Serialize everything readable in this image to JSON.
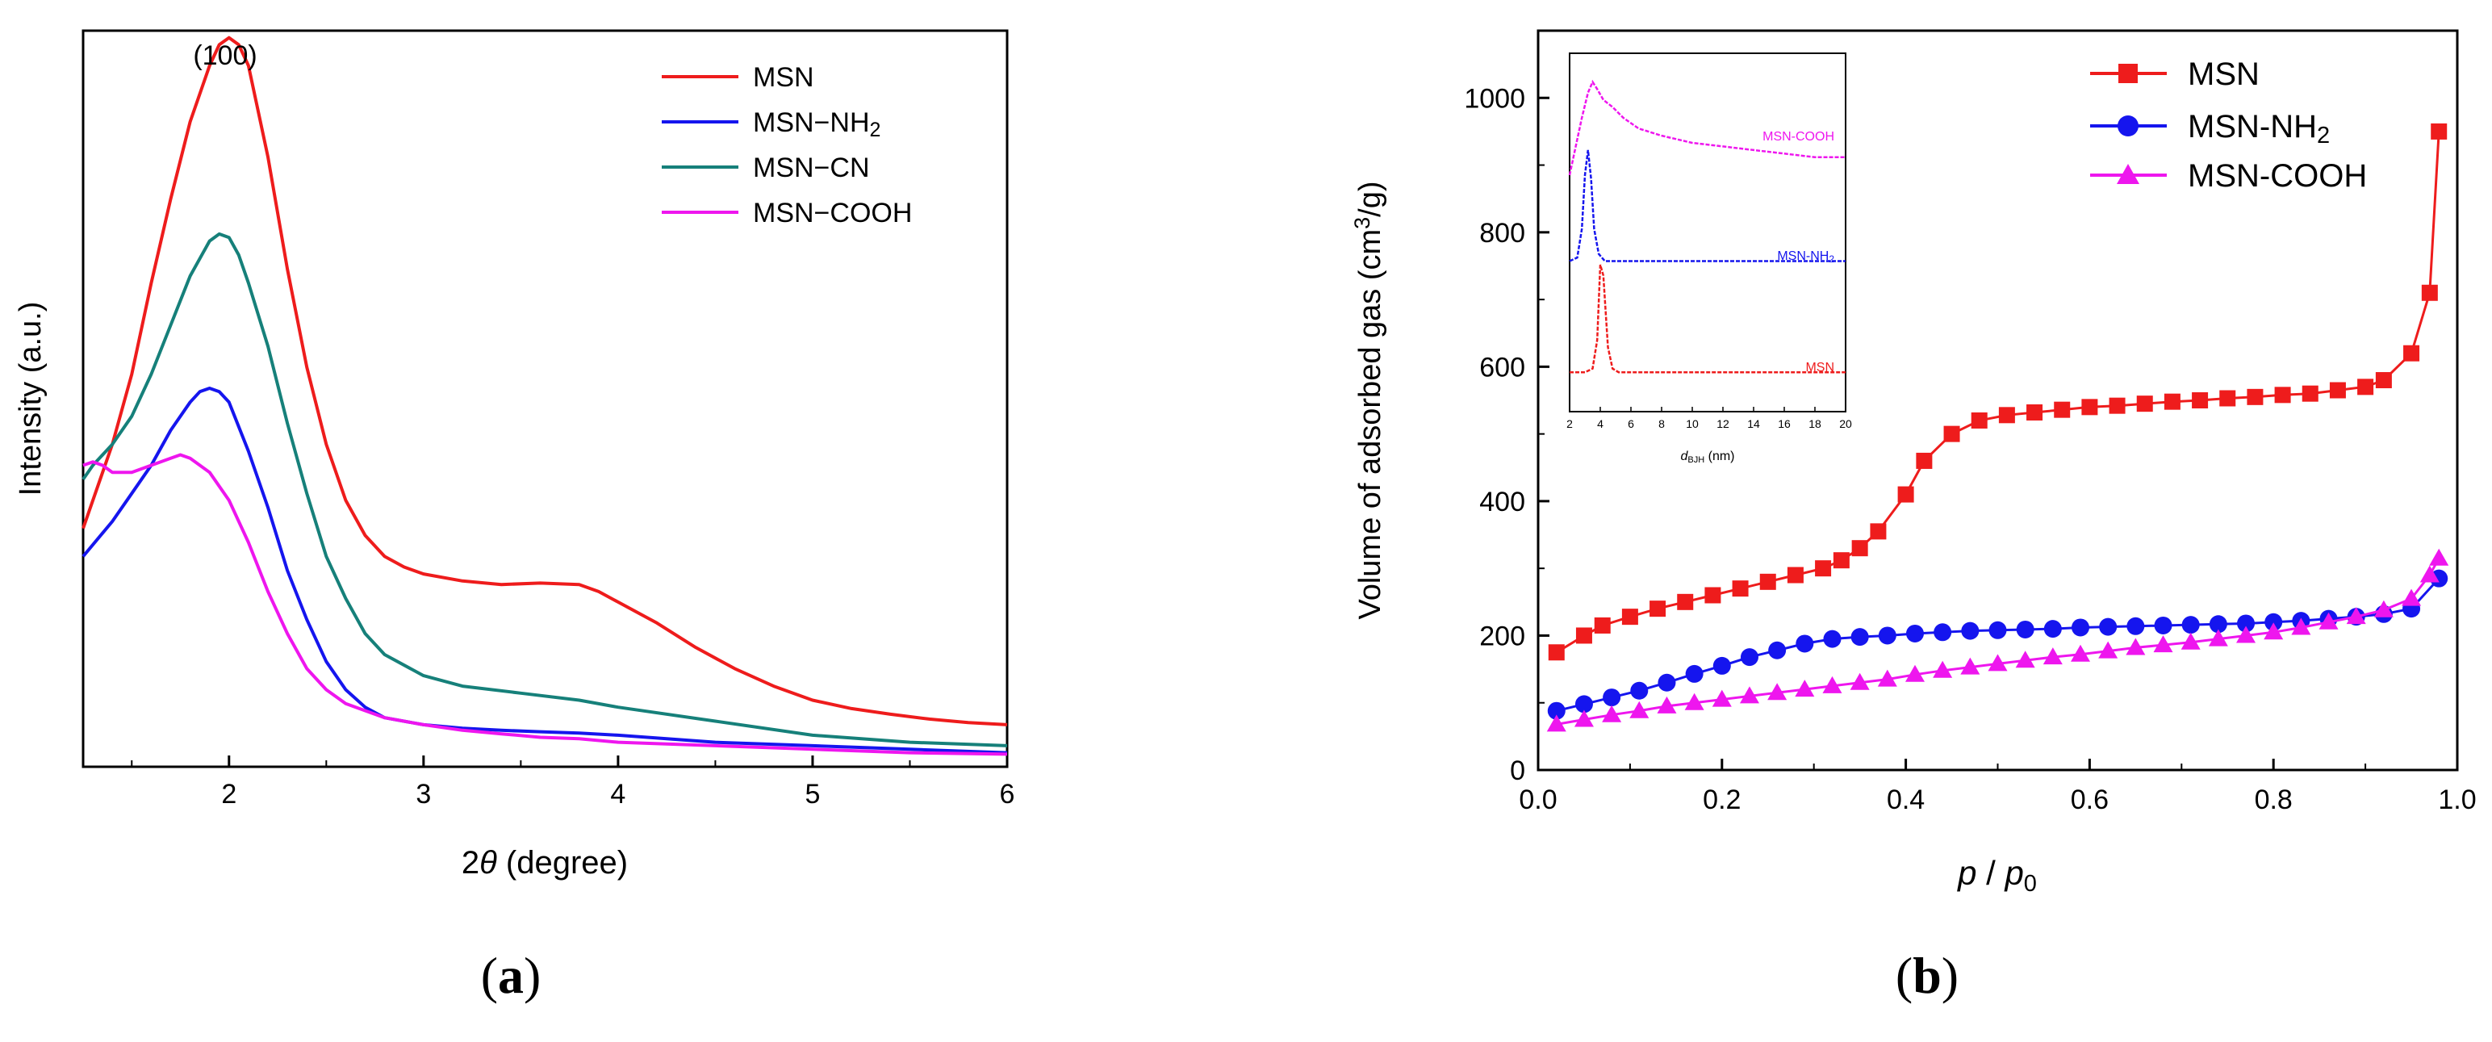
{
  "panels": {
    "a": {
      "label_open": "(",
      "label_letter": "a",
      "label_close": ")"
    },
    "b": {
      "label_open": "(",
      "label_letter": "b",
      "label_close": ")"
    }
  },
  "chart_data": [
    {
      "type": "line",
      "panel": "a",
      "title": "",
      "xlabel_prefix": "2",
      "xlabel_symbol": "θ",
      "xlabel_suffix": " (degree)",
      "ylabel": "Intensity (a.u.)",
      "annotation": "(100)",
      "xlim": [
        1.25,
        6
      ],
      "ylim": [
        0,
        1.05
      ],
      "xticks": [
        2,
        3,
        4,
        5,
        6
      ],
      "yticks": [],
      "legend_position": "top-right",
      "series": [
        {
          "name": "MSN",
          "legend_label": "MSN",
          "color": "#ee1c1c",
          "x": [
            1.25,
            1.4,
            1.5,
            1.6,
            1.7,
            1.8,
            1.9,
            1.95,
            2.0,
            2.05,
            2.1,
            2.2,
            2.3,
            2.4,
            2.5,
            2.6,
            2.7,
            2.8,
            2.9,
            3.0,
            3.2,
            3.4,
            3.6,
            3.8,
            3.9,
            4.0,
            4.2,
            4.4,
            4.6,
            4.8,
            5.0,
            5.2,
            5.4,
            5.6,
            5.8,
            6.0
          ],
          "y": [
            0.34,
            0.46,
            0.56,
            0.69,
            0.81,
            0.92,
            1.0,
            1.03,
            1.04,
            1.03,
            1.0,
            0.87,
            0.71,
            0.57,
            0.46,
            0.38,
            0.33,
            0.3,
            0.285,
            0.275,
            0.265,
            0.26,
            0.262,
            0.26,
            0.25,
            0.235,
            0.205,
            0.17,
            0.14,
            0.115,
            0.095,
            0.083,
            0.075,
            0.068,
            0.063,
            0.06
          ]
        },
        {
          "name": "MSN-NH2",
          "legend_label_base": "MSN−NH",
          "legend_label_sub": "2",
          "color": "#1515ee",
          "x": [
            1.25,
            1.4,
            1.5,
            1.6,
            1.7,
            1.8,
            1.85,
            1.9,
            1.95,
            2.0,
            2.1,
            2.2,
            2.3,
            2.4,
            2.5,
            2.6,
            2.7,
            2.8,
            3.0,
            3.2,
            3.4,
            3.6,
            3.8,
            4.0,
            4.5,
            5.0,
            5.5,
            6.0
          ],
          "y": [
            0.3,
            0.35,
            0.39,
            0.43,
            0.48,
            0.52,
            0.535,
            0.54,
            0.535,
            0.52,
            0.45,
            0.37,
            0.28,
            0.21,
            0.15,
            0.11,
            0.085,
            0.07,
            0.06,
            0.055,
            0.052,
            0.05,
            0.048,
            0.045,
            0.035,
            0.03,
            0.025,
            0.02
          ]
        },
        {
          "name": "MSN-CN",
          "legend_label": "MSN−CN",
          "color": "#16807a",
          "x": [
            1.25,
            1.3,
            1.4,
            1.5,
            1.6,
            1.7,
            1.8,
            1.9,
            1.95,
            2.0,
            2.05,
            2.1,
            2.2,
            2.3,
            2.4,
            2.5,
            2.6,
            2.7,
            2.8,
            3.0,
            3.2,
            3.5,
            3.8,
            4.0,
            4.5,
            5.0,
            5.5,
            6.0
          ],
          "y": [
            0.41,
            0.43,
            0.46,
            0.5,
            0.56,
            0.63,
            0.7,
            0.75,
            0.76,
            0.755,
            0.73,
            0.69,
            0.6,
            0.49,
            0.39,
            0.3,
            0.24,
            0.19,
            0.16,
            0.13,
            0.115,
            0.105,
            0.095,
            0.085,
            0.065,
            0.045,
            0.035,
            0.03
          ]
        },
        {
          "name": "MSN-COOH",
          "legend_label": "MSN−COOH",
          "color": "#ee16ee",
          "x": [
            1.25,
            1.3,
            1.35,
            1.4,
            1.5,
            1.6,
            1.7,
            1.75,
            1.8,
            1.9,
            2.0,
            2.1,
            2.2,
            2.3,
            2.4,
            2.5,
            2.6,
            2.7,
            2.8,
            3.0,
            3.2,
            3.4,
            3.6,
            3.8,
            4.0,
            4.5,
            5.0,
            5.5,
            6.0
          ],
          "y": [
            0.43,
            0.435,
            0.43,
            0.42,
            0.42,
            0.43,
            0.44,
            0.445,
            0.44,
            0.42,
            0.38,
            0.32,
            0.25,
            0.19,
            0.14,
            0.11,
            0.09,
            0.08,
            0.07,
            0.06,
            0.052,
            0.047,
            0.042,
            0.04,
            0.035,
            0.03,
            0.025,
            0.02,
            0.018
          ]
        }
      ]
    },
    {
      "type": "line",
      "panel": "b",
      "title": "",
      "xlabel_p": "p",
      "xlabel_slash": " / ",
      "xlabel_p0_base": "p",
      "xlabel_p0_sub": "0",
      "ylabel_prefix": "Volume of adsorbed gas (cm",
      "ylabel_sup": "3",
      "ylabel_suffix": "/g)",
      "xlim": [
        0,
        1.0
      ],
      "ylim": [
        0,
        1100
      ],
      "xticks": [
        0.0,
        0.2,
        0.4,
        0.6,
        0.8,
        1.0
      ],
      "xtick_labels": [
        "0.0",
        "0.2",
        "0.4",
        "0.6",
        "0.8",
        "1.0"
      ],
      "yticks": [
        0,
        200,
        400,
        600,
        800,
        1000
      ],
      "ytick_labels": [
        "0",
        "200",
        "400",
        "600",
        "800",
        "1000"
      ],
      "legend_position": "top-right",
      "series": [
        {
          "name": "MSN",
          "legend_label": "MSN",
          "marker": "square",
          "color": "#ee1c1c",
          "x": [
            0.02,
            0.05,
            0.07,
            0.1,
            0.13,
            0.16,
            0.19,
            0.22,
            0.25,
            0.28,
            0.31,
            0.33,
            0.35,
            0.37,
            0.4,
            0.42,
            0.45,
            0.48,
            0.51,
            0.54,
            0.57,
            0.6,
            0.63,
            0.66,
            0.69,
            0.72,
            0.75,
            0.78,
            0.81,
            0.84,
            0.87,
            0.9,
            0.92,
            0.95,
            0.97,
            0.98
          ],
          "y": [
            175,
            200,
            215,
            228,
            240,
            250,
            260,
            270,
            280,
            290,
            300,
            312,
            330,
            355,
            410,
            460,
            500,
            520,
            528,
            532,
            536,
            540,
            542,
            545,
            548,
            550,
            553,
            555,
            558,
            560,
            565,
            570,
            580,
            620,
            710,
            950
          ]
        },
        {
          "name": "MSN-NH2",
          "legend_label_base": "MSN-NH",
          "legend_label_sub": "2",
          "marker": "circle",
          "color": "#1515ee",
          "x": [
            0.02,
            0.05,
            0.08,
            0.11,
            0.14,
            0.17,
            0.2,
            0.23,
            0.26,
            0.29,
            0.32,
            0.35,
            0.38,
            0.41,
            0.44,
            0.47,
            0.5,
            0.53,
            0.56,
            0.59,
            0.62,
            0.65,
            0.68,
            0.71,
            0.74,
            0.77,
            0.8,
            0.83,
            0.86,
            0.89,
            0.92,
            0.95,
            0.98
          ],
          "y": [
            88,
            98,
            108,
            118,
            130,
            143,
            155,
            168,
            178,
            188,
            195,
            198,
            200,
            203,
            205,
            207,
            208,
            209,
            210,
            212,
            213,
            214,
            215,
            216,
            217,
            218,
            220,
            222,
            225,
            228,
            232,
            240,
            285
          ]
        },
        {
          "name": "MSN-COOH",
          "legend_label": "MSN-COOH",
          "marker": "triangle",
          "color": "#ee16ee",
          "x": [
            0.02,
            0.05,
            0.08,
            0.11,
            0.14,
            0.17,
            0.2,
            0.23,
            0.26,
            0.29,
            0.32,
            0.35,
            0.38,
            0.41,
            0.44,
            0.47,
            0.5,
            0.53,
            0.56,
            0.59,
            0.62,
            0.65,
            0.68,
            0.71,
            0.74,
            0.77,
            0.8,
            0.83,
            0.86,
            0.89,
            0.92,
            0.95,
            0.97,
            0.98
          ],
          "y": [
            68,
            75,
            82,
            88,
            95,
            100,
            105,
            110,
            115,
            120,
            125,
            130,
            135,
            142,
            148,
            153,
            158,
            163,
            168,
            172,
            177,
            182,
            186,
            190,
            195,
            200,
            205,
            212,
            220,
            228,
            238,
            255,
            290,
            315
          ]
        }
      ]
    },
    {
      "type": "line",
      "panel": "b-inset",
      "title": "",
      "xlabel_base": "d",
      "xlabel_sub": "BJH",
      "xlabel_unit": " (nm)",
      "xlim": [
        2,
        20
      ],
      "xticks": [
        2,
        4,
        6,
        8,
        10,
        12,
        14,
        16,
        18,
        20
      ],
      "xtick_labels": [
        "2",
        "4",
        "6",
        "8",
        "10",
        "12",
        "14",
        "16",
        "18",
        "20"
      ],
      "ylim": [
        0,
        1
      ],
      "series": [
        {
          "name": "MSN",
          "inset_label": "MSN",
          "color": "#ee1c1c",
          "x": [
            2,
            3.0,
            3.5,
            3.8,
            4.0,
            4.2,
            4.5,
            4.8,
            5.2,
            6,
            8,
            12,
            16,
            20
          ],
          "y": [
            0.03,
            0.03,
            0.04,
            0.12,
            0.33,
            0.3,
            0.1,
            0.04,
            0.03,
            0.03,
            0.03,
            0.03,
            0.03,
            0.03
          ],
          "baseline": 0.08
        },
        {
          "name": "MSN-NH2",
          "inset_label_base": "MSN-NH",
          "inset_label_sub": "2",
          "color": "#1515ee",
          "x": [
            2,
            2.5,
            2.8,
            3.0,
            3.2,
            3.4,
            3.6,
            3.9,
            4.3,
            5,
            6,
            8,
            12,
            16,
            20
          ],
          "y": [
            0.03,
            0.04,
            0.12,
            0.27,
            0.34,
            0.26,
            0.12,
            0.05,
            0.03,
            0.03,
            0.03,
            0.03,
            0.03,
            0.03,
            0.03
          ],
          "baseline": 0.39
        },
        {
          "name": "MSN-COOH",
          "inset_label": "MSN-COOH",
          "color": "#ee16ee",
          "x": [
            2,
            2.4,
            2.8,
            3.2,
            3.5,
            3.8,
            4.2,
            4.8,
            5.5,
            6.5,
            8,
            10,
            12,
            14,
            16,
            18,
            20
          ],
          "y": [
            0.0,
            0.08,
            0.16,
            0.23,
            0.26,
            0.24,
            0.21,
            0.19,
            0.16,
            0.13,
            0.11,
            0.09,
            0.08,
            0.07,
            0.06,
            0.05,
            0.05
          ],
          "baseline": 0.66
        }
      ]
    }
  ]
}
